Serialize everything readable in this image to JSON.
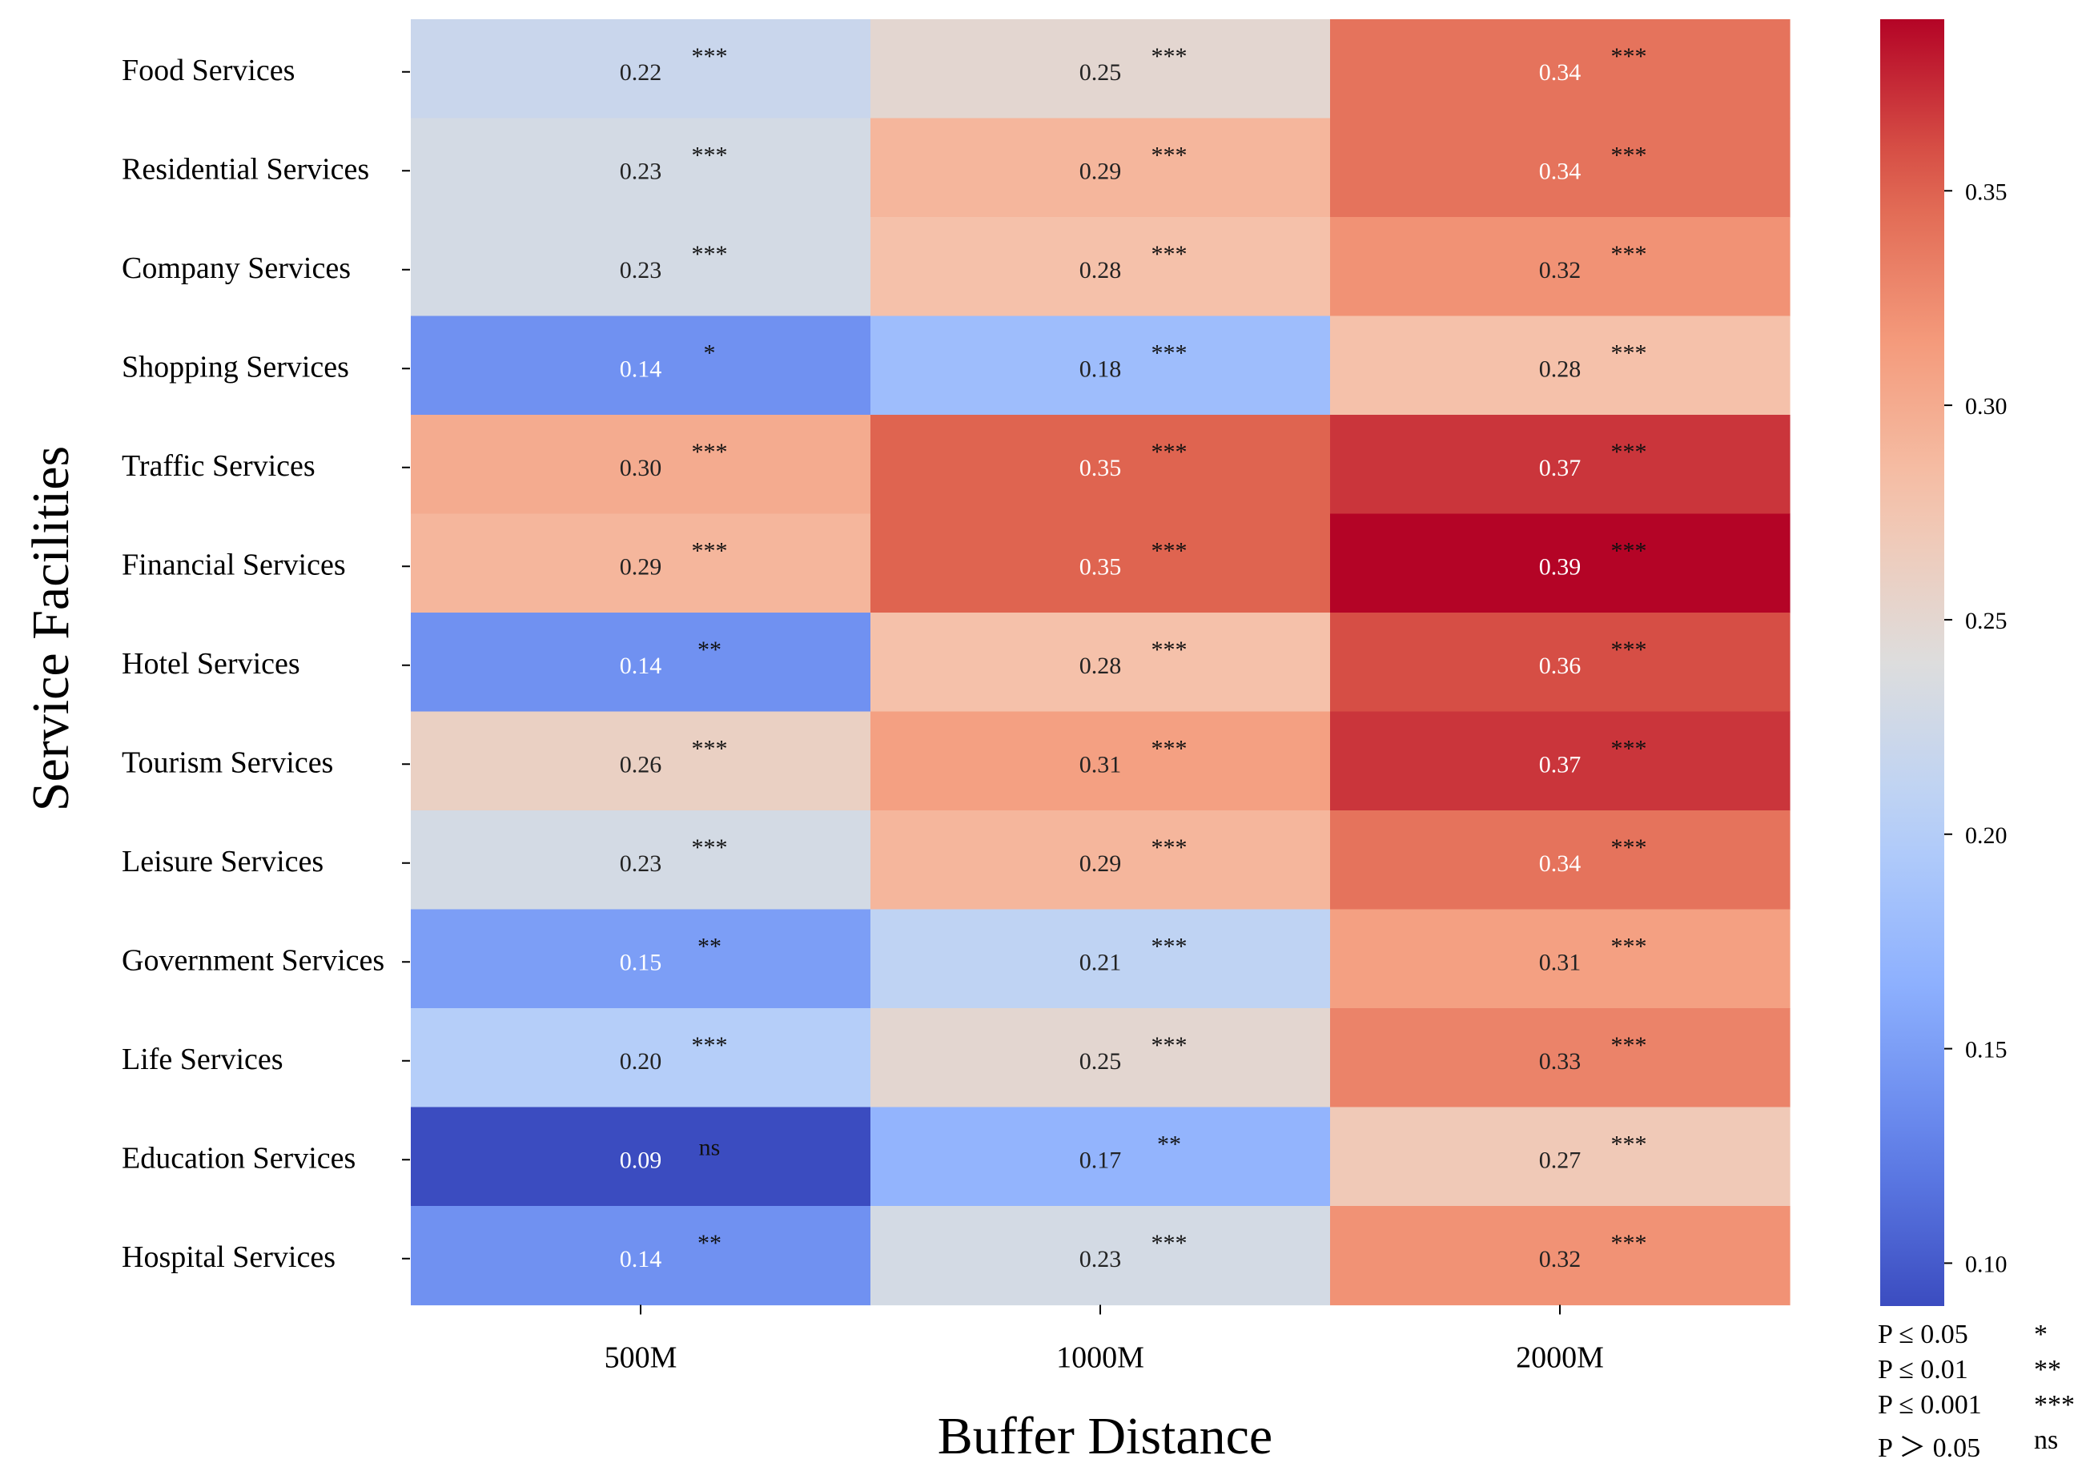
{
  "chart_data": {
    "type": "heatmap",
    "xlabel": "Buffer Distance",
    "ylabel": "Service Facilities",
    "columns": [
      "500M",
      "1000M",
      "2000M"
    ],
    "rows": [
      "Food Services",
      "Residential Services",
      "Company Services",
      "Shopping Services",
      "Traffic Services",
      "Financial Services",
      "Hotel Services",
      "Tourism Services",
      "Leisure Services",
      "Government Services",
      "Life Services",
      "Education Services",
      "Hospital Services"
    ],
    "values": [
      [
        0.22,
        0.25,
        0.34
      ],
      [
        0.23,
        0.29,
        0.34
      ],
      [
        0.23,
        0.28,
        0.32
      ],
      [
        0.14,
        0.18,
        0.28
      ],
      [
        0.3,
        0.35,
        0.37
      ],
      [
        0.29,
        0.35,
        0.39
      ],
      [
        0.14,
        0.28,
        0.36
      ],
      [
        0.26,
        0.31,
        0.37
      ],
      [
        0.23,
        0.29,
        0.34
      ],
      [
        0.15,
        0.21,
        0.31
      ],
      [
        0.2,
        0.25,
        0.33
      ],
      [
        0.09,
        0.17,
        0.27
      ],
      [
        0.14,
        0.23,
        0.32
      ]
    ],
    "significance": [
      [
        "***",
        "***",
        "***"
      ],
      [
        "***",
        "***",
        "***"
      ],
      [
        "***",
        "***",
        "***"
      ],
      [
        "*",
        "***",
        "***"
      ],
      [
        "***",
        "***",
        "***"
      ],
      [
        "***",
        "***",
        "***"
      ],
      [
        "**",
        "***",
        "***"
      ],
      [
        "***",
        "***",
        "***"
      ],
      [
        "***",
        "***",
        "***"
      ],
      [
        "**",
        "***",
        "***"
      ],
      [
        "***",
        "***",
        "***"
      ],
      [
        "ns",
        "**",
        "***"
      ],
      [
        "**",
        "***",
        "***"
      ]
    ],
    "colorbar": {
      "colormap": "coolwarm",
      "range": [
        0.09,
        0.39
      ],
      "ticks": [
        0.1,
        0.15,
        0.2,
        0.25,
        0.3,
        0.35
      ],
      "tick_labels": [
        "0.10",
        "0.15",
        "0.20",
        "0.25",
        "0.30",
        "0.35"
      ]
    },
    "legend": [
      {
        "label": "P ≤ 0.05",
        "symbol": "*"
      },
      {
        "label": "P ≤ 0.01",
        "symbol": "**"
      },
      {
        "label": "P ≤ 0.001",
        "symbol": "***"
      },
      {
        "label": "P ＞ 0.05",
        "symbol": "ns"
      }
    ],
    "legend_position": "bottom-right"
  }
}
